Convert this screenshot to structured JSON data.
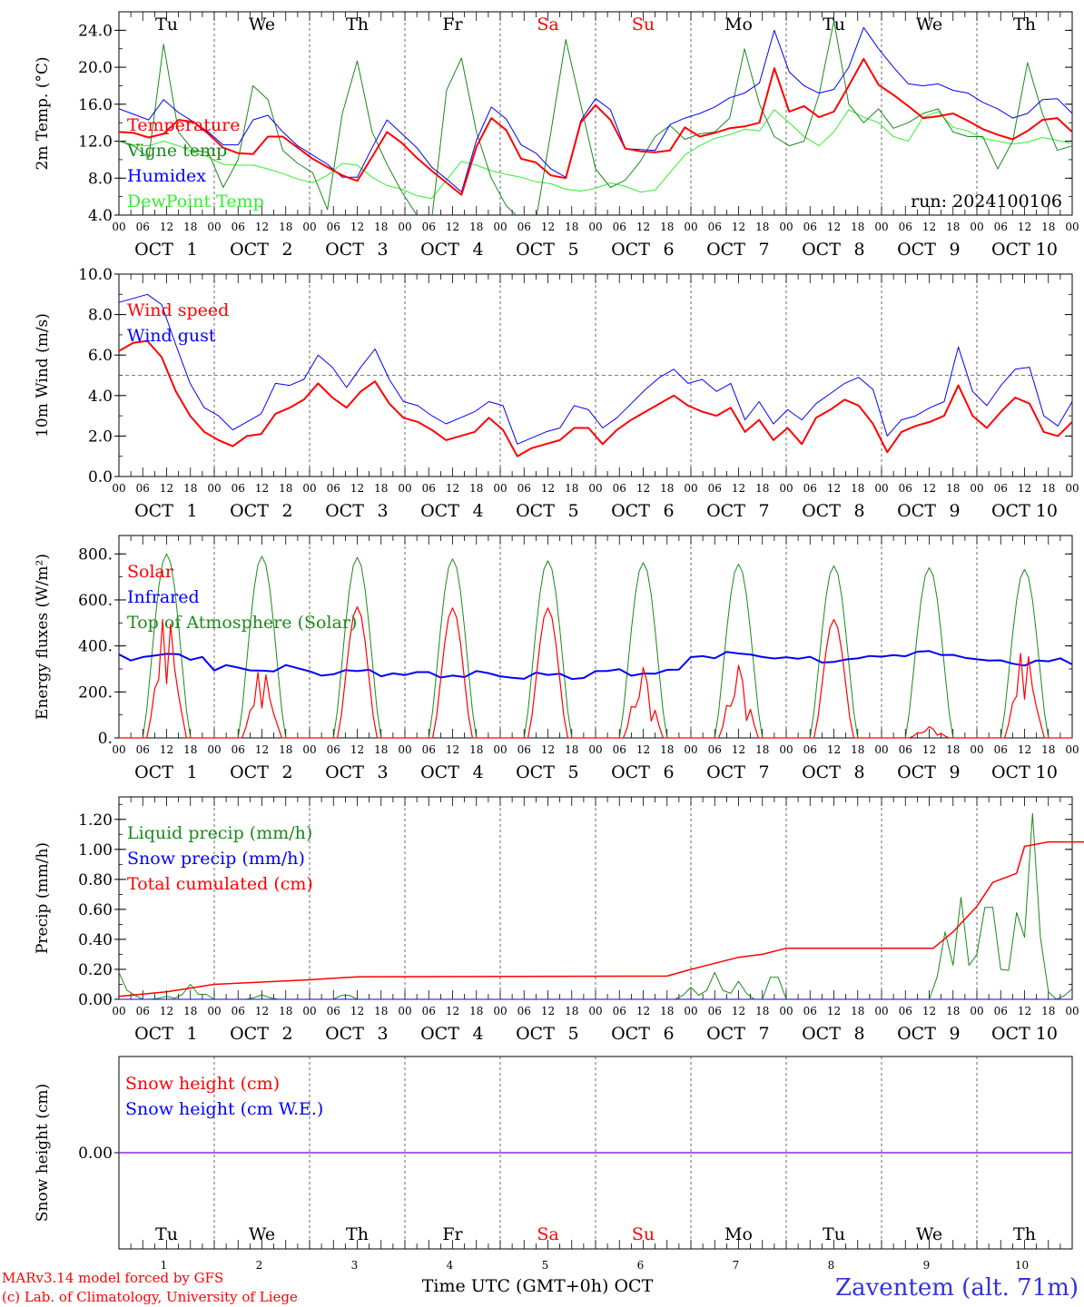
{
  "colors": {
    "red": "#ff0000",
    "darkgreen": "#1a8a1a",
    "blue": "#0000ff",
    "lightgreen": "#33ee33",
    "purple": "#8a2be2",
    "brand": "#3333dd"
  },
  "days": [
    {
      "dow": "Tu",
      "date": "1",
      "weekend": false
    },
    {
      "dow": "We",
      "date": "2",
      "weekend": false
    },
    {
      "dow": "Th",
      "date": "3",
      "weekend": false
    },
    {
      "dow": "Fr",
      "date": "4",
      "weekend": false
    },
    {
      "dow": "Sa",
      "date": "5",
      "weekend": true
    },
    {
      "dow": "Su",
      "date": "6",
      "weekend": true
    },
    {
      "dow": "Mo",
      "date": "7",
      "weekend": false
    },
    {
      "dow": "Tu",
      "date": "8",
      "weekend": false
    },
    {
      "dow": "We",
      "date": "9",
      "weekend": false
    },
    {
      "dow": "Th",
      "date": "10",
      "weekend": false
    }
  ],
  "hour_ticks": [
    "00",
    "06",
    "12",
    "18"
  ],
  "month_label": "OCT",
  "run_label": "run: 2024100106",
  "footer": {
    "model": "MARv3.14 model forced by GFS",
    "credit": "(c) Lab. of Climatology, University of Liege",
    "time_axis": "Time UTC (GMT+0h) OCT",
    "station": "Zaventem (alt. 71m)"
  },
  "chart_data": [
    {
      "type": "line",
      "ylabel": "2m Temp. (°C)",
      "ylim": [
        4,
        26
      ],
      "yticks": [
        "4.0",
        "8.0",
        "12.0",
        "16.0",
        "20.0",
        "24.0"
      ],
      "x_hours_step": 3,
      "series": [
        {
          "name": "Temperature",
          "color": "#ff0000",
          "width": 2,
          "values": [
            13,
            12.9,
            12.4,
            12.8,
            14.3,
            14.1,
            12.8,
            11.3,
            10.7,
            10.6,
            12.5,
            12.5,
            11.3,
            10.1,
            9.2,
            8.3,
            7.7,
            10.3,
            13,
            11.8,
            10.2,
            8.8,
            7.5,
            6.2,
            11.4,
            14.5,
            13.2,
            10.1,
            9.7,
            8.3,
            8,
            14,
            15.9,
            14.3,
            11.2,
            10.9,
            10.8,
            11,
            13.5,
            12.5,
            12.9,
            13.4,
            13.6,
            14,
            19.9,
            15.2,
            15.8,
            14.6,
            15.2,
            18,
            20.9,
            18.1,
            17,
            15.8,
            14.5,
            14.7,
            15,
            14.2,
            13.3,
            12.7,
            12.2,
            13.1,
            14.3,
            14.5,
            13,
            12.7
          ]
        },
        {
          "name": "Vigne temp",
          "color": "#1a8a1a",
          "width": 1,
          "values": [
            12,
            11.5,
            10.2,
            22.5,
            13,
            11,
            10.8,
            7,
            10,
            18,
            16.5,
            11,
            9.6,
            8.6,
            4.6,
            15,
            20.7,
            13,
            9.5,
            6.5,
            4,
            3.5,
            17.5,
            21,
            13,
            8,
            5,
            3.5,
            3.5,
            13,
            23,
            16,
            9,
            7,
            7.8,
            9.8,
            12.5,
            13.7,
            12.2,
            12.8,
            13,
            14.5,
            22,
            16,
            12.5,
            11.5,
            12,
            17,
            25,
            16,
            14,
            15.5,
            13.4,
            14,
            15,
            15.5,
            13,
            12.5,
            12.5,
            9,
            12,
            20.5,
            15,
            11,
            11.5,
            11.3
          ]
        },
        {
          "name": "Humidex",
          "color": "#0000ff",
          "width": 1,
          "values": [
            15.5,
            14.9,
            14.3,
            16.5,
            15.1,
            14.1,
            13,
            11.6,
            11.6,
            14.3,
            14.8,
            13,
            11.5,
            10.5,
            9.5,
            8.1,
            8.1,
            11.3,
            14.3,
            12.8,
            11.3,
            9.2,
            7.9,
            6.5,
            12.1,
            15.7,
            14.4,
            11.6,
            10.7,
            9,
            8.1,
            14.2,
            16.6,
            15.4,
            11.2,
            11.1,
            11,
            13.8,
            14.5,
            15,
            15.7,
            16.7,
            17.2,
            18.3,
            24,
            19.5,
            18,
            17.2,
            17.6,
            20,
            24.3,
            22,
            20,
            18.2,
            18,
            18.2,
            17.5,
            17.2,
            16.2,
            15.5,
            14.5,
            15,
            16.5,
            16.6,
            15,
            14.6
          ]
        },
        {
          "name": "DewPoint Temp",
          "color": "#33ee33",
          "width": 1,
          "values": [
            12,
            11.6,
            11.5,
            12,
            11.5,
            10.8,
            10.3,
            9.5,
            9.4,
            9.4,
            9,
            8.5,
            7.9,
            7.5,
            8.3,
            9.6,
            9.4,
            8.1,
            7.2,
            6.8,
            6.1,
            5.8,
            7.8,
            9.8,
            9.4,
            8.8,
            8.4,
            8.1,
            7.6,
            7.4,
            6.8,
            6.6,
            6.9,
            7.5,
            7.1,
            6.5,
            6.7,
            8.6,
            10.5,
            11.5,
            12.3,
            12.7,
            13.3,
            13.1,
            15.4,
            14,
            12.5,
            11.5,
            13,
            15.4,
            14.6,
            14,
            12.5,
            12,
            14.6,
            15.2,
            13.5,
            13.1,
            12.3,
            12,
            11.7,
            11.9,
            12.4,
            12.1,
            11.7,
            11.6
          ]
        }
      ]
    },
    {
      "type": "line",
      "ylabel": "10m Wind (m/s)",
      "ylim": [
        0,
        10
      ],
      "yticks": [
        "0.0",
        "2.0",
        "4.0",
        "6.0",
        "8.0",
        "10.0"
      ],
      "ref_line": 5,
      "x_hours_step": 3,
      "series": [
        {
          "name": "Wind speed",
          "color": "#ff0000",
          "width": 2,
          "values": [
            6.2,
            6.6,
            6.7,
            5.9,
            4.2,
            3,
            2.2,
            1.8,
            1.5,
            2,
            2.1,
            3.1,
            3.4,
            3.8,
            4.6,
            3.9,
            3.4,
            4.2,
            4.7,
            3.6,
            2.9,
            2.7,
            2.3,
            1.8,
            2,
            2.2,
            2.9,
            2.3,
            1,
            1.4,
            1.6,
            1.8,
            2.4,
            2.4,
            1.6,
            2.3,
            2.8,
            3.2,
            3.6,
            4,
            3.5,
            3.2,
            3,
            3.4,
            2.2,
            2.8,
            1.8,
            2.4,
            1.6,
            2.9,
            3.3,
            3.8,
            3.5,
            2.6,
            1.2,
            2.2,
            2.5,
            2.7,
            3,
            4.5,
            3,
            2.4,
            3.2,
            3.9,
            3.6,
            2.2,
            2,
            2.7
          ]
        },
        {
          "name": "Wind gust",
          "color": "#0000ff",
          "width": 1,
          "values": [
            8.6,
            8.8,
            9,
            8.5,
            6.5,
            4.6,
            3.4,
            3,
            2.3,
            2.7,
            3.1,
            4.6,
            4.5,
            4.8,
            6,
            5.4,
            4.4,
            5.4,
            6.3,
            4.8,
            3.7,
            3.5,
            3,
            2.6,
            2.9,
            3.2,
            3.7,
            3.5,
            1.6,
            1.9,
            2.2,
            2.4,
            3.5,
            3.3,
            2.4,
            2.9,
            3.6,
            4.3,
            4.9,
            5.3,
            4.6,
            4.8,
            4.2,
            4.6,
            2.8,
            3.7,
            2.6,
            3.3,
            2.8,
            3.6,
            4.1,
            4.6,
            4.9,
            4.3,
            2,
            2.8,
            3,
            3.4,
            3.7,
            6.4,
            4.2,
            3.5,
            4.5,
            5.3,
            5.4,
            3,
            2.5,
            3.7
          ]
        }
      ]
    },
    {
      "type": "line",
      "ylabel": "Energy fluxes (W/m²)",
      "ylim": [
        0,
        880
      ],
      "yticks": [
        "0.",
        "200.",
        "400.",
        "600.",
        "800."
      ],
      "series": [
        {
          "name": "Solar",
          "color": "#ff0000",
          "width": 1,
          "peaks": [
            [
              12,
              560,
              "spiky"
            ],
            [
              36,
              310,
              "spiky"
            ],
            [
              60,
              570,
              "smooth"
            ],
            [
              84,
              565,
              "smooth"
            ],
            [
              108,
              565,
              "smooth"
            ],
            [
              132,
              310,
              "low"
            ],
            [
              156,
              320,
              "low"
            ],
            [
              180,
              515,
              "smooth"
            ],
            [
              204,
              50,
              "low"
            ],
            [
              228,
              400,
              "spiky"
            ]
          ]
        },
        {
          "name": "Infrared",
          "color": "#0000ff",
          "width": 2
        },
        {
          "name": "Top of Atmosphere (Solar)",
          "color": "#1a8a1a",
          "width": 1,
          "peaks": [
            800,
            790,
            785,
            778,
            770,
            762,
            755,
            748,
            740,
            732
          ]
        }
      ]
    },
    {
      "type": "line",
      "ylabel": "Precip (mm/h)",
      "ylim": [
        0,
        1.35
      ],
      "yticks": [
        "0.00",
        "0.20",
        "0.40",
        "0.60",
        "0.80",
        "1.00",
        "1.20"
      ],
      "series": [
        {
          "name": "Liquid precip (mm/h)",
          "color": "#1a8a1a",
          "width": 1
        },
        {
          "name": "Snow precip (mm/h)",
          "color": "#0000ff",
          "width": 1
        },
        {
          "name": "Total cumulated (cm)",
          "color": "#ff0000",
          "width": 1.5,
          "points": [
            [
              0,
              0.02
            ],
            [
              12,
              0.05
            ],
            [
              24,
              0.1
            ],
            [
              48,
              0.13
            ],
            [
              60,
              0.15
            ],
            [
              138,
              0.155
            ],
            [
              144,
              0.2
            ],
            [
              156,
              0.28
            ],
            [
              162,
              0.3
            ],
            [
              168,
              0.34
            ],
            [
              205,
              0.34
            ],
            [
              210,
              0.45
            ],
            [
              216,
              0.62
            ],
            [
              220,
              0.78
            ],
            [
              226,
              0.84
            ],
            [
              228,
              1.02
            ],
            [
              234,
              1.05
            ],
            [
              252,
              1.05
            ]
          ]
        }
      ]
    },
    {
      "type": "line",
      "ylabel": "Snow height (cm)",
      "ylim": [
        -1,
        1
      ],
      "yticks": [
        "0.00"
      ],
      "series": [
        {
          "name": "Snow height (cm)",
          "color": "#ff0000",
          "width": 1,
          "values": [
            0,
            0
          ]
        },
        {
          "name": "Snow height (cm W.E.)",
          "color": "#0000ff",
          "width": 1,
          "values": [
            0,
            0
          ]
        }
      ]
    }
  ]
}
